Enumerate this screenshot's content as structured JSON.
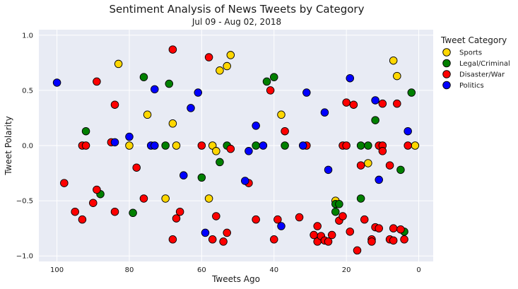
{
  "chart_data": {
    "type": "scatter",
    "title": "Sentiment Analysis of News Tweets by Category",
    "subtitle": "Jul 09 - Aug 02, 2018",
    "xlabel": "Tweets Ago",
    "ylabel": "Tweet Polarity",
    "xlim": [
      105,
      -4
    ],
    "ylim": [
      -1.05,
      1.05
    ],
    "xticks": [
      100,
      80,
      60,
      40,
      20,
      0
    ],
    "yticks": [
      -1.0,
      -0.5,
      0.0,
      0.5,
      1.0
    ],
    "x_tick_labels": [
      "100",
      "80",
      "60",
      "40",
      "20",
      "0"
    ],
    "y_tick_labels": [
      "−1.0",
      "−0.5",
      "0.0",
      "0.5",
      "1.0"
    ],
    "grid": true,
    "legend_title": "Tweet Category",
    "legend_position": "outside-right",
    "series": [
      {
        "name": "Sports",
        "color": "#FFD700",
        "points": [
          [
            83,
            0.74
          ],
          [
            75,
            0.28
          ],
          [
            67,
            0.0
          ],
          [
            80,
            0.0
          ],
          [
            68,
            0.2
          ],
          [
            70,
            -0.48
          ],
          [
            58,
            -0.48
          ],
          [
            57,
            0.0
          ],
          [
            56,
            -0.05
          ],
          [
            55,
            0.68
          ],
          [
            53,
            0.72
          ],
          [
            52,
            0.82
          ],
          [
            38,
            0.28
          ],
          [
            23,
            -0.5
          ],
          [
            14,
            -0.16
          ],
          [
            7,
            0.77
          ],
          [
            6,
            0.63
          ],
          [
            1,
            0.0
          ]
        ]
      },
      {
        "name": "Legal/Criminal",
        "color": "#008000",
        "points": [
          [
            92,
            0.13
          ],
          [
            88,
            -0.44
          ],
          [
            79,
            -0.61
          ],
          [
            76,
            0.62
          ],
          [
            69,
            0.56
          ],
          [
            70,
            0.0
          ],
          [
            60,
            -0.29
          ],
          [
            55,
            -0.15
          ],
          [
            53,
            0.0
          ],
          [
            45,
            0.0
          ],
          [
            42,
            0.58
          ],
          [
            40,
            0.62
          ],
          [
            37,
            0.0
          ],
          [
            23,
            -0.53
          ],
          [
            22,
            -0.53
          ],
          [
            23,
            -0.6
          ],
          [
            16,
            0.0
          ],
          [
            16,
            -0.48
          ],
          [
            14,
            0.0
          ],
          [
            12,
            0.23
          ],
          [
            5,
            -0.22
          ],
          [
            4,
            -0.78
          ],
          [
            2,
            0.48
          ]
        ]
      },
      {
        "name": "Disaster/War",
        "color": "#FF0000",
        "points": [
          [
            98,
            -0.34
          ],
          [
            95,
            -0.6
          ],
          [
            93,
            -0.67
          ],
          [
            93,
            0.0
          ],
          [
            92,
            0.0
          ],
          [
            90,
            -0.52
          ],
          [
            89,
            -0.4
          ],
          [
            89,
            0.58
          ],
          [
            85,
            0.03
          ],
          [
            84,
            0.37
          ],
          [
            84,
            -0.6
          ],
          [
            78,
            -0.2
          ],
          [
            76,
            -0.48
          ],
          [
            68,
            0.87
          ],
          [
            68,
            -0.85
          ],
          [
            67,
            -0.66
          ],
          [
            66,
            -0.6
          ],
          [
            60,
            0.0
          ],
          [
            58,
            0.8
          ],
          [
            57,
            -0.85
          ],
          [
            56,
            -0.64
          ],
          [
            54,
            -0.87
          ],
          [
            53,
            -0.79
          ],
          [
            52,
            -0.03
          ],
          [
            47,
            -0.34
          ],
          [
            45,
            -0.67
          ],
          [
            41,
            0.5
          ],
          [
            40,
            -0.85
          ],
          [
            39,
            -0.67
          ],
          [
            37,
            0.13
          ],
          [
            33,
            -0.65
          ],
          [
            31,
            0.0
          ],
          [
            29,
            -0.81
          ],
          [
            28,
            -0.73
          ],
          [
            28,
            -0.87
          ],
          [
            27,
            -0.82
          ],
          [
            26,
            -0.86
          ],
          [
            25,
            -0.87
          ],
          [
            24,
            -0.81
          ],
          [
            22,
            -0.68
          ],
          [
            21,
            -0.64
          ],
          [
            21,
            0.0
          ],
          [
            20,
            0.0
          ],
          [
            20,
            0.39
          ],
          [
            19,
            -0.78
          ],
          [
            18,
            0.37
          ],
          [
            17,
            -0.95
          ],
          [
            16,
            -0.18
          ],
          [
            15,
            -0.67
          ],
          [
            13,
            -0.85
          ],
          [
            13,
            -0.87
          ],
          [
            12,
            -0.74
          ],
          [
            11,
            -0.75
          ],
          [
            11,
            0.0
          ],
          [
            10,
            0.0
          ],
          [
            10,
            0.38
          ],
          [
            10,
            -0.05
          ],
          [
            8,
            -0.18
          ],
          [
            8,
            -0.85
          ],
          [
            7,
            -0.75
          ],
          [
            7,
            -0.86
          ],
          [
            6,
            0.38
          ],
          [
            5,
            -0.76
          ],
          [
            4,
            -0.85
          ],
          [
            3,
            0.0
          ]
        ]
      },
      {
        "name": "Politics",
        "color": "#0000FF",
        "points": [
          [
            100,
            0.57
          ],
          [
            84,
            0.03
          ],
          [
            80,
            0.08
          ],
          [
            74,
            0.0
          ],
          [
            73,
            0.0
          ],
          [
            73,
            0.51
          ],
          [
            65,
            -0.27
          ],
          [
            63,
            0.34
          ],
          [
            61,
            0.48
          ],
          [
            59,
            -0.79
          ],
          [
            48,
            -0.32
          ],
          [
            47,
            -0.05
          ],
          [
            45,
            0.18
          ],
          [
            43,
            0.0
          ],
          [
            38,
            -0.73
          ],
          [
            32,
            0.0
          ],
          [
            31,
            0.48
          ],
          [
            26,
            0.3
          ],
          [
            25,
            -0.22
          ],
          [
            19,
            0.61
          ],
          [
            12,
            0.41
          ],
          [
            11,
            -0.31
          ],
          [
            3,
            0.13
          ]
        ]
      }
    ]
  }
}
